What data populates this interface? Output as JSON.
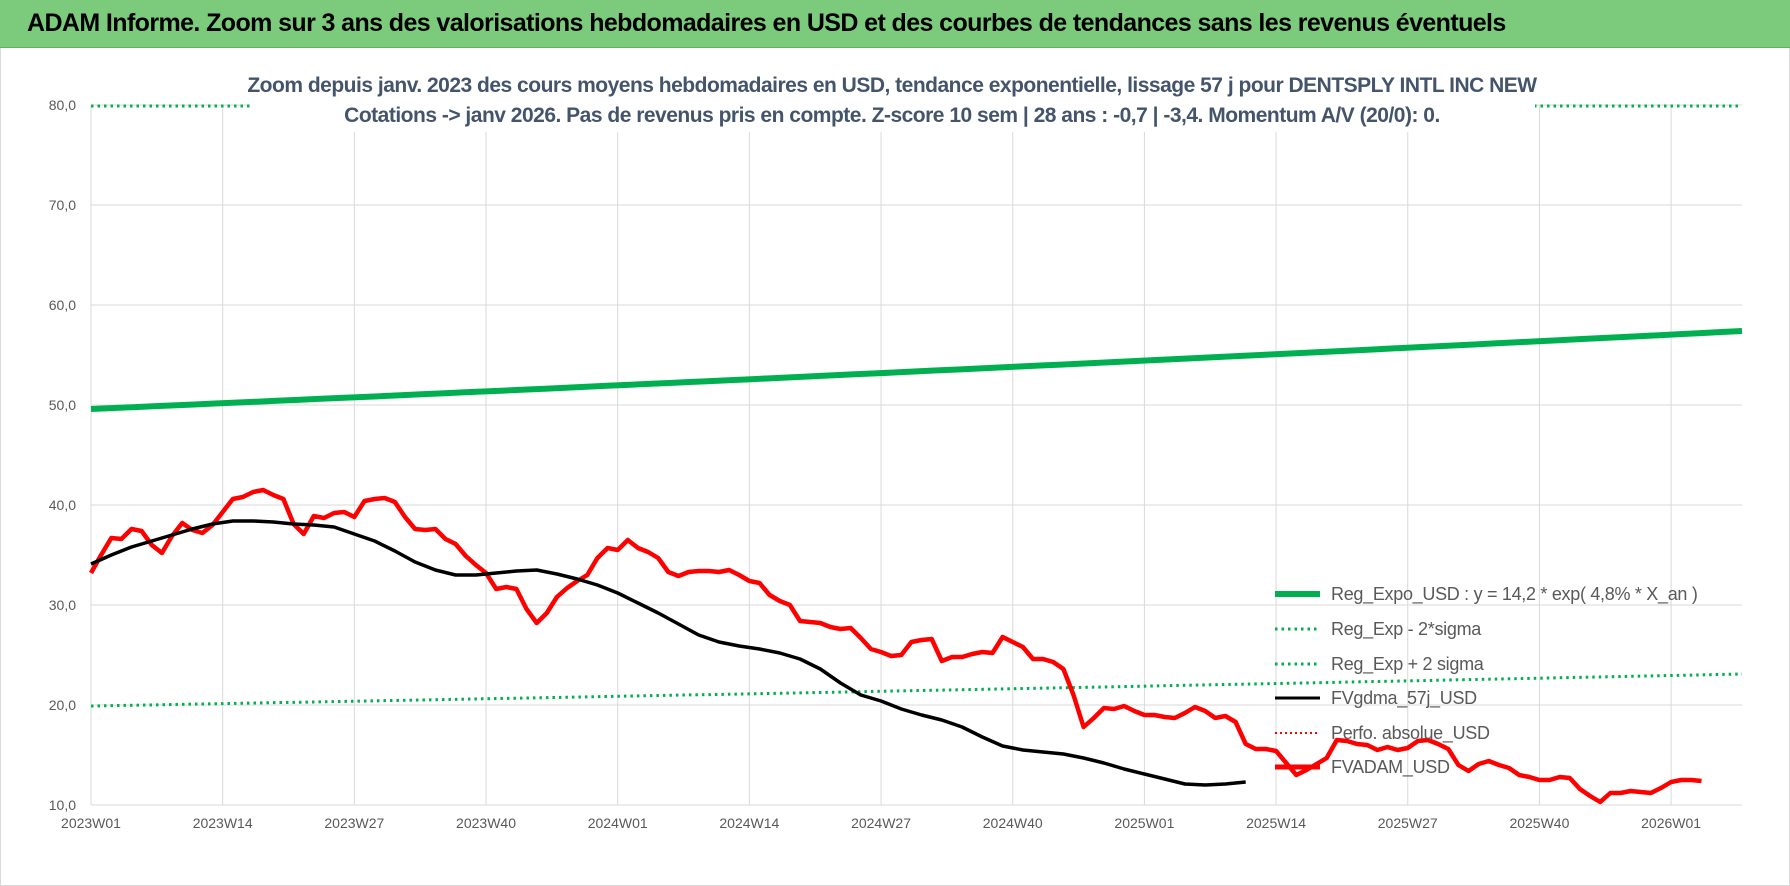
{
  "banner": {
    "title": "ADAM Informe. Zoom sur 3 ans des valorisations hebdomadaires en USD et des courbes de tendances sans les revenus éventuels"
  },
  "colors": {
    "banner": "#7ccb7c",
    "trend": "#00b050",
    "band": "#00b050",
    "fv": "#000000",
    "adam": "#ff0000",
    "grid": "#d9d9d9",
    "subtitle": "#44546a"
  },
  "chart_data": {
    "type": "line",
    "title_lines": [
      "Zoom depuis janv. 2023 des cours moyens hebdomadaires en USD, tendance exponentielle, lissage 57 j pour DENTSPLY INTL INC NEW",
      "Cotations -> janv 2026. Pas de revenus pris en compte. Z-score 10 sem | 28 ans : -0,7 | -3,4. Momentum A/V (20/0): 0."
    ],
    "ylim": [
      10,
      80
    ],
    "y_ticks": [
      "10,0",
      "20,0",
      "30,0",
      "40,0",
      "50,0",
      "60,0",
      "70,0",
      "80,0"
    ],
    "x_ticks": [
      "2023W01",
      "2023W14",
      "2023W27",
      "2023W40",
      "2024W01",
      "2024W14",
      "2024W27",
      "2024W40",
      "2025W01",
      "2025W14",
      "2025W27",
      "2025W40",
      "2026W01"
    ],
    "x_range_weeks": [
      0,
      163
    ],
    "grid": true,
    "legend_position": "bottom-right",
    "legend": [
      "Reg_Expo_USD : y = 14,2 * exp( 4,8% *  X_an )",
      "Reg_Exp - 2*sigma",
      "Reg_Exp + 2 sigma",
      "FVgdma_57j_USD",
      "Perfo. absolue_USD",
      "FVADAM_USD"
    ],
    "series": {
      "reg_expo": {
        "start": 49.6,
        "end": 57.4
      },
      "lower_band": {
        "start": 19.9,
        "end": 23.1
      },
      "upper_band": {
        "start": 79.9,
        "end": 79.9
      },
      "fv_gdma_57j": [
        [
          0,
          34.1
        ],
        [
          4,
          35.0
        ],
        [
          8,
          35.8
        ],
        [
          12,
          36.4
        ],
        [
          16,
          37.0
        ],
        [
          20,
          37.6
        ],
        [
          24,
          38.1
        ],
        [
          28,
          38.4
        ],
        [
          32,
          38.4
        ],
        [
          36,
          38.3
        ],
        [
          40,
          38.1
        ],
        [
          44,
          38.0
        ],
        [
          48,
          37.8
        ],
        [
          52,
          37.1
        ],
        [
          56,
          36.4
        ],
        [
          60,
          35.4
        ],
        [
          64,
          34.3
        ],
        [
          68,
          33.5
        ],
        [
          72,
          33.0
        ],
        [
          76,
          33.0
        ],
        [
          80,
          33.2
        ],
        [
          84,
          33.4
        ],
        [
          88,
          33.5
        ],
        [
          92,
          33.1
        ],
        [
          96,
          32.6
        ],
        [
          100,
          32.0
        ],
        [
          104,
          31.2
        ],
        [
          108,
          30.2
        ],
        [
          112,
          29.2
        ],
        [
          116,
          28.1
        ],
        [
          120,
          27.0
        ],
        [
          124,
          26.3
        ],
        [
          128,
          25.9
        ],
        [
          132,
          25.6
        ],
        [
          136,
          25.2
        ],
        [
          140,
          24.6
        ],
        [
          144,
          23.6
        ],
        [
          148,
          22.2
        ],
        [
          152,
          21.0
        ],
        [
          156,
          20.4
        ],
        [
          160,
          19.6
        ],
        [
          164,
          19.0
        ],
        [
          168,
          18.5
        ],
        [
          172,
          17.8
        ],
        [
          176,
          16.8
        ],
        [
          180,
          15.9
        ],
        [
          184,
          15.5
        ],
        [
          188,
          15.3
        ],
        [
          192,
          15.1
        ],
        [
          196,
          14.7
        ],
        [
          200,
          14.2
        ],
        [
          204,
          13.6
        ],
        [
          208,
          13.1
        ],
        [
          212,
          12.6
        ],
        [
          216,
          12.1
        ],
        [
          220,
          12.0
        ],
        [
          224,
          12.1
        ],
        [
          228,
          12.3
        ]
      ],
      "fv_adam": [
        [
          0,
          33.2
        ],
        [
          2,
          35.0
        ],
        [
          4,
          36.7
        ],
        [
          6,
          36.6
        ],
        [
          8,
          37.6
        ],
        [
          10,
          37.4
        ],
        [
          12,
          36.0
        ],
        [
          14,
          35.2
        ],
        [
          16,
          36.9
        ],
        [
          18,
          38.2
        ],
        [
          20,
          37.5
        ],
        [
          22,
          37.2
        ],
        [
          24,
          38.0
        ],
        [
          26,
          39.3
        ],
        [
          28,
          40.6
        ],
        [
          30,
          40.8
        ],
        [
          32,
          41.3
        ],
        [
          34,
          41.5
        ],
        [
          36,
          41.0
        ],
        [
          38,
          40.6
        ],
        [
          40,
          38.1
        ],
        [
          42,
          37.1
        ],
        [
          44,
          38.9
        ],
        [
          46,
          38.7
        ],
        [
          48,
          39.2
        ],
        [
          50,
          39.3
        ],
        [
          52,
          38.8
        ],
        [
          54,
          40.4
        ],
        [
          56,
          40.6
        ],
        [
          58,
          40.7
        ],
        [
          60,
          40.3
        ],
        [
          62,
          38.8
        ],
        [
          64,
          37.6
        ],
        [
          66,
          37.5
        ],
        [
          68,
          37.6
        ],
        [
          70,
          36.6
        ],
        [
          72,
          36.1
        ],
        [
          74,
          34.9
        ],
        [
          76,
          34.0
        ],
        [
          78,
          33.2
        ],
        [
          80,
          31.6
        ],
        [
          82,
          31.8
        ],
        [
          84,
          31.6
        ],
        [
          86,
          29.6
        ],
        [
          88,
          28.2
        ],
        [
          90,
          29.2
        ],
        [
          92,
          30.8
        ],
        [
          94,
          31.7
        ],
        [
          96,
          32.4
        ],
        [
          98,
          33.0
        ],
        [
          100,
          34.7
        ],
        [
          102,
          35.7
        ],
        [
          104,
          35.5
        ],
        [
          106,
          36.5
        ],
        [
          108,
          35.7
        ],
        [
          110,
          35.3
        ],
        [
          112,
          34.7
        ],
        [
          114,
          33.3
        ],
        [
          116,
          32.9
        ],
        [
          118,
          33.3
        ],
        [
          120,
          33.4
        ],
        [
          122,
          33.4
        ],
        [
          124,
          33.3
        ],
        [
          126,
          33.5
        ],
        [
          128,
          33.0
        ],
        [
          130,
          32.4
        ],
        [
          132,
          32.2
        ],
        [
          134,
          31.0
        ],
        [
          136,
          30.4
        ],
        [
          138,
          30.0
        ],
        [
          140,
          28.4
        ],
        [
          142,
          28.3
        ],
        [
          144,
          28.2
        ],
        [
          146,
          27.8
        ],
        [
          148,
          27.6
        ],
        [
          150,
          27.7
        ],
        [
          152,
          26.7
        ],
        [
          154,
          25.6
        ],
        [
          156,
          25.3
        ],
        [
          158,
          24.9
        ],
        [
          160,
          25.0
        ],
        [
          162,
          26.3
        ],
        [
          164,
          26.5
        ],
        [
          166,
          26.6
        ],
        [
          168,
          24.4
        ],
        [
          170,
          24.8
        ],
        [
          172,
          24.8
        ],
        [
          174,
          25.1
        ],
        [
          176,
          25.3
        ],
        [
          178,
          25.2
        ],
        [
          180,
          26.8
        ],
        [
          182,
          26.3
        ],
        [
          184,
          25.8
        ],
        [
          186,
          24.6
        ],
        [
          188,
          24.6
        ],
        [
          190,
          24.3
        ],
        [
          192,
          23.6
        ],
        [
          194,
          21.0
        ],
        [
          196,
          17.8
        ],
        [
          198,
          18.7
        ],
        [
          200,
          19.7
        ],
        [
          202,
          19.6
        ],
        [
          204,
          19.9
        ],
        [
          206,
          19.4
        ],
        [
          208,
          19.0
        ],
        [
          210,
          19.0
        ],
        [
          212,
          18.8
        ],
        [
          214,
          18.7
        ],
        [
          216,
          19.2
        ],
        [
          218,
          19.8
        ],
        [
          220,
          19.4
        ],
        [
          222,
          18.7
        ],
        [
          224,
          18.9
        ],
        [
          226,
          18.3
        ],
        [
          228,
          16.1
        ],
        [
          230,
          15.6
        ],
        [
          232,
          15.6
        ],
        [
          234,
          15.4
        ],
        [
          236,
          14.2
        ],
        [
          238,
          13.0
        ],
        [
          240,
          13.5
        ],
        [
          242,
          14.1
        ],
        [
          244,
          14.7
        ],
        [
          246,
          16.5
        ],
        [
          248,
          16.4
        ],
        [
          250,
          16.1
        ],
        [
          252,
          16.0
        ],
        [
          254,
          15.5
        ],
        [
          256,
          15.8
        ],
        [
          258,
          15.5
        ],
        [
          260,
          15.7
        ],
        [
          262,
          16.4
        ],
        [
          264,
          16.5
        ],
        [
          266,
          16.1
        ],
        [
          268,
          15.6
        ],
        [
          270,
          14.0
        ],
        [
          272,
          13.4
        ],
        [
          274,
          14.1
        ],
        [
          276,
          14.4
        ],
        [
          278,
          14.0
        ],
        [
          280,
          13.7
        ],
        [
          282,
          13.0
        ],
        [
          284,
          12.8
        ],
        [
          286,
          12.5
        ],
        [
          288,
          12.5
        ],
        [
          290,
          12.8
        ],
        [
          292,
          12.7
        ],
        [
          294,
          11.6
        ],
        [
          296,
          10.9
        ],
        [
          298,
          10.3
        ],
        [
          300,
          11.2
        ],
        [
          302,
          11.2
        ],
        [
          304,
          11.4
        ],
        [
          306,
          11.3
        ],
        [
          308,
          11.2
        ],
        [
          310,
          11.7
        ],
        [
          312,
          12.3
        ],
        [
          314,
          12.5
        ],
        [
          316,
          12.5
        ],
        [
          318,
          12.4
        ]
      ]
    }
  }
}
